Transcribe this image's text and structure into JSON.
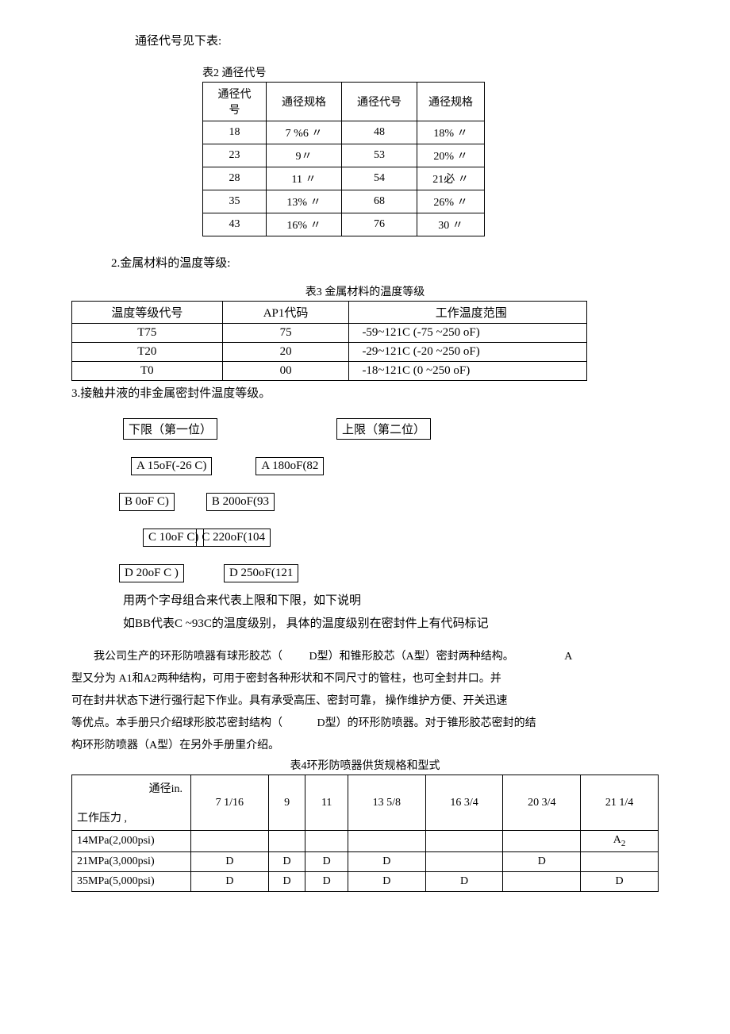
{
  "intro": "通径代号见下表:",
  "table2": {
    "caption": "表2 通径代号",
    "headers": [
      "通径代号",
      "通径规格",
      "通径代号",
      "通径规格"
    ],
    "rows": [
      [
        "18",
        "7 %6 〃",
        "48",
        "18%  〃"
      ],
      [
        "23",
        "9〃",
        "53",
        "20%  〃"
      ],
      [
        "28",
        "11  〃",
        "54",
        "21必 〃"
      ],
      [
        "35",
        "13%  〃",
        "68",
        "26%  〃"
      ],
      [
        "43",
        "16%  〃",
        "76",
        "30  〃"
      ]
    ]
  },
  "section2_heading": "2.金属材料的温度等级:",
  "table3": {
    "caption": "表3 金属材料的温度等级",
    "headers": [
      "温度等级代号",
      "AP1代码",
      "工作温度范围"
    ],
    "rows": [
      [
        "T75",
        "75",
        "-59~121C (-75 ~250 oF)"
      ],
      [
        "T20",
        "20",
        "-29~121C (-20 ~250 oF)"
      ],
      [
        "T0",
        "00",
        "-18~121C (0 ~250 oF)"
      ]
    ]
  },
  "section3_heading": "3.接触井液的非金属密封件温度等级。",
  "limits": {
    "lower_label": "下限（第一位）",
    "upper_label": "上限（第二位）",
    "rows": [
      {
        "l": "A 15oF(-26 C)",
        "r": "A 180oF(82",
        "lm": 75,
        "rm": 240
      },
      {
        "l": "B 0oF C)",
        "r": "B 200oF(93",
        "lm": 60,
        "rm": 210
      },
      {
        "l": "C 10oF C)",
        "r": "C 220oF(104",
        "lm": 90,
        "rm": 190
      },
      {
        "l": "D 20oF C )",
        "r": "D 250oF(121",
        "lm": 60,
        "rm": 220
      }
    ]
  },
  "explain1": "用两个字母组合来代表上限和下限，如下说明",
  "explain2": "如BB代表C ~93C的温度级别， 具体的温度级别在密封件上有代码标记",
  "body1a": "我公司生产的环形防喷器有球形胶芯（",
  "body1b": "D型）和锥形胶芯（A型）密封两种结构。",
  "body1c": "A",
  "body2": "型又分为 A1和A2两种结构，可用于密封各种形状和不同尺寸的管柱，也可全封井口。并",
  "body3": "可在封井状态下进行强行起下作业。具有承受高压、密封可靠， 操作维护方便、开关迅速",
  "body4a": "等优点。本手册只介绍球形胶芯密封结构（",
  "body4b": "D型）的环形防喷器。对于锥形胶芯密封的结",
  "body5": "构环形防喷器（A型）在另外手册里介绍。",
  "table4": {
    "caption": "表4环形防喷器供货规格和型式",
    "diag_top": "通径in.",
    "diag_bottom": "工作压力     ,",
    "cols": [
      "7 1/16",
      "9",
      "11",
      "13 5/8",
      "16 3/4",
      "20 3/4",
      "21 1/4"
    ],
    "rows": [
      {
        "h": "14MPa(2,000psi)",
        "v": [
          "",
          "",
          "",
          "",
          "",
          "",
          "A2"
        ]
      },
      {
        "h": "21MPa(3,000psi)",
        "v": [
          "D",
          "D",
          "D",
          "D",
          "",
          "D",
          ""
        ]
      },
      {
        "h": "35MPa(5,000psi)",
        "v": [
          "D",
          "D",
          "D",
          "D",
          "D",
          "",
          "D"
        ]
      }
    ]
  }
}
